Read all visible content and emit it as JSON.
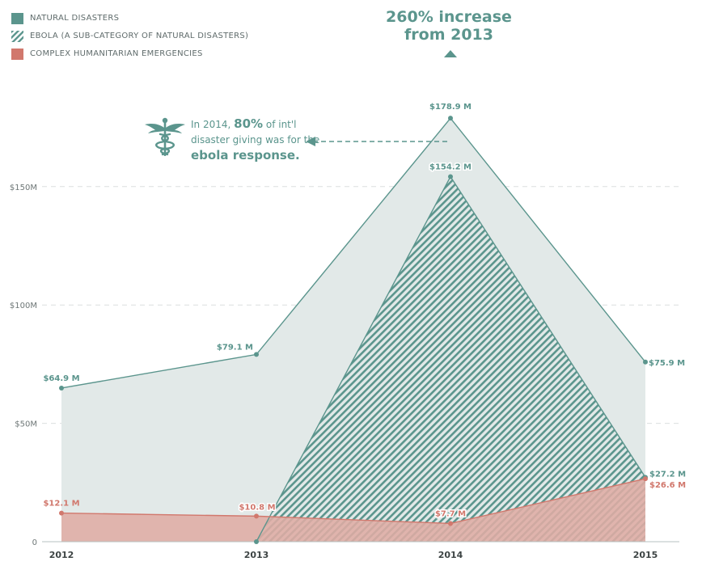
{
  "legend": [
    {
      "label": "NATURAL DISASTERS",
      "color": "#5b958d",
      "pattern": "solid"
    },
    {
      "label": "EBOLA (A SUB-CATEGORY OF NATURAL DISASTERS)",
      "color": "#5b958d",
      "pattern": "hatch"
    },
    {
      "label": "COMPLEX HUMANITARIAN EMERGENCIES",
      "color": "#d1786d",
      "pattern": "solid"
    }
  ],
  "headline": {
    "line1": "260% increase",
    "line2": "from 2013"
  },
  "callout": {
    "part1": "In 2014, ",
    "pct": "80%",
    "part2": " of int'l",
    "line2": "disaster giving was for the",
    "line3": "ebola response.",
    "icon": "caduceus-icon"
  },
  "chart_data": {
    "type": "area",
    "x": [
      "2012",
      "2013",
      "2014",
      "2015"
    ],
    "ylim": [
      0,
      180
    ],
    "yticks": [
      {
        "value": 0,
        "label": "0"
      },
      {
        "value": 50,
        "label": "$50M"
      },
      {
        "value": 100,
        "label": "$100M"
      },
      {
        "value": 150,
        "label": "$150M"
      }
    ],
    "grid": true,
    "legend_position": "top-left",
    "series": [
      {
        "name": "NATURAL DISASTERS",
        "values": [
          64.9,
          79.1,
          178.9,
          75.9
        ],
        "labels": [
          "$64.9 M",
          "$79.1 M",
          "$178.9 M",
          "$75.9 M"
        ],
        "color": "#5b958d",
        "fill": "#e2e9e8",
        "pattern": "solid"
      },
      {
        "name": "EBOLA (A SUB-CATEGORY OF NATURAL DISASTERS)",
        "values": [
          0,
          0,
          154.2,
          27.2
        ],
        "labels": [
          "",
          "",
          "$154.2 M",
          "$27.2 M"
        ],
        "color": "#5b958d",
        "pattern": "hatch"
      },
      {
        "name": "COMPLEX HUMANITARIAN EMERGENCIES",
        "values": [
          12.1,
          10.8,
          7.7,
          26.6
        ],
        "labels": [
          "$12.1 M",
          "$10.8 M",
          "$7.7 M",
          "$26.6 M"
        ],
        "color": "#d1786d",
        "fill": "#dfaca4",
        "pattern": "solid"
      }
    ]
  }
}
